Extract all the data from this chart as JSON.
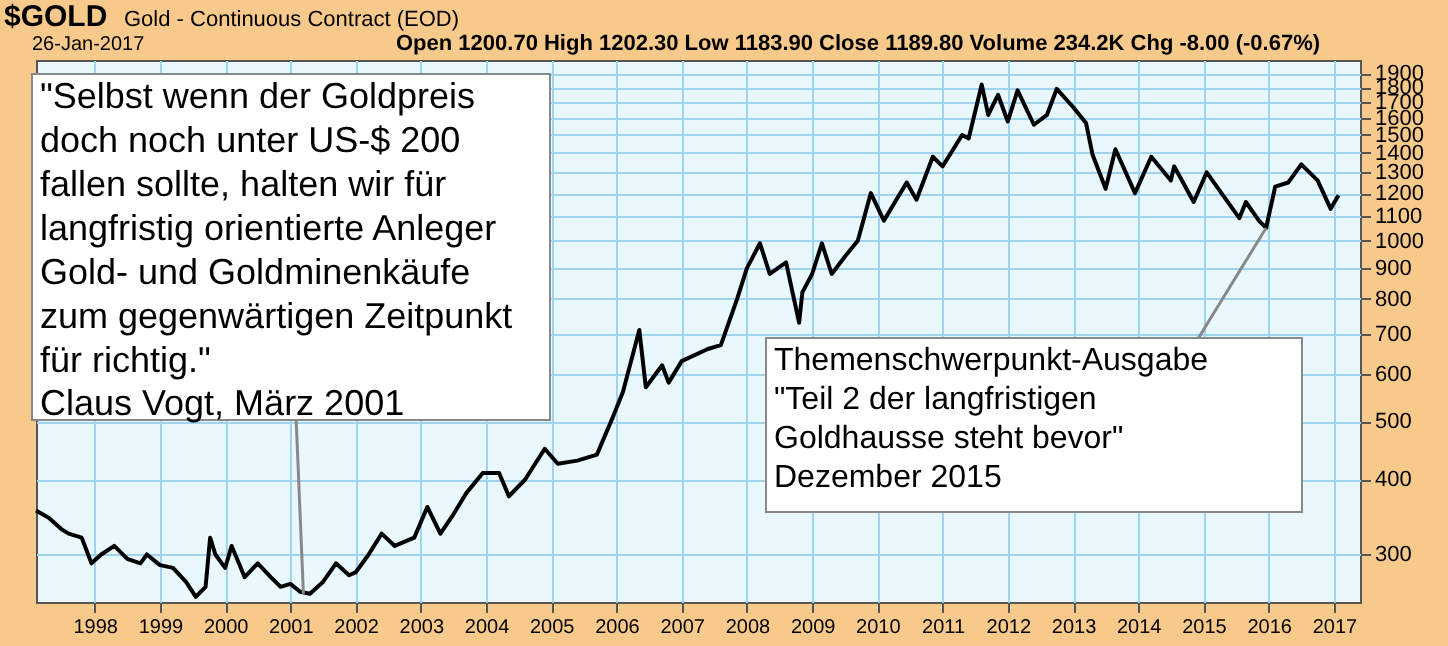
{
  "chart_data": {
    "type": "line",
    "title": "$GOLD",
    "subtitle": "Gold - Continuous Contract (EOD)",
    "annotations": [
      "26-Jan-2017",
      "Open 1200.70  High 1202.30  Low 1183.90  Close 1189.80  Volume 234.2K  Chg -8.00 (-0.67%)",
      {
        "text": "\"Selbst wenn der Goldpreis\ndoch noch unter US-$ 200\nfallen sollte, halten wir für\nlangfristig orientierte Anleger\nGold- und Goldminenkäufe\nzum gegenwärtigen Zeitpunkt\nfür richtig.\"\nClaus Vogt, März 2001",
        "x": 2001.2,
        "y": 258
      },
      {
        "text": "Themenschwerpunkt-Ausgabe\n\"Teil 2 der langfristigen\nGoldhausse steht bevor\"\nDezember 2015",
        "x": 2015.96,
        "y": 1050
      }
    ],
    "series": [
      {
        "color": "#000000",
        "x": [
          1997.1,
          1997.3,
          1997.5,
          1997.6,
          1997.8,
          1997.95,
          1998.1,
          1998.3,
          1998.5,
          1998.7,
          1998.8,
          1999.0,
          1999.2,
          1999.4,
          1999.55,
          1999.7,
          1999.77,
          1999.85,
          2000.0,
          2000.1,
          2000.3,
          2000.5,
          2000.7,
          2000.85,
          2001.0,
          2001.15,
          2001.3,
          2001.5,
          2001.7,
          2001.9,
          2002.0,
          2002.2,
          2002.4,
          2002.6,
          2002.9,
          2003.1,
          2003.3,
          2003.5,
          2003.7,
          2003.95,
          2004.2,
          2004.35,
          2004.6,
          2004.9,
          2005.1,
          2005.4,
          2005.7,
          2005.95,
          2006.1,
          2006.35,
          2006.45,
          2006.7,
          2006.8,
          2007.0,
          2007.4,
          2007.6,
          2007.85,
          2008.0,
          2008.2,
          2008.35,
          2008.6,
          2008.8,
          2008.85,
          2009.0,
          2009.15,
          2009.3,
          2009.5,
          2009.7,
          2009.9,
          2010.1,
          2010.45,
          2010.6,
          2010.85,
          2011.0,
          2011.3,
          2011.4,
          2011.6,
          2011.7,
          2011.85,
          2012.0,
          2012.15,
          2012.4,
          2012.6,
          2012.75,
          2013.0,
          2013.2,
          2013.3,
          2013.5,
          2013.65,
          2013.95,
          2014.2,
          2014.5,
          2014.55,
          2014.85,
          2015.05,
          2015.3,
          2015.55,
          2015.65,
          2015.85,
          2015.96,
          2016.1,
          2016.3,
          2016.5,
          2016.75,
          2016.95,
          2017.07
        ],
        "values": [
          355,
          345,
          330,
          325,
          320,
          290,
          300,
          310,
          295,
          290,
          300,
          288,
          285,
          270,
          255,
          265,
          320,
          300,
          285,
          310,
          275,
          290,
          275,
          265,
          268,
          260,
          258,
          270,
          290,
          277,
          280,
          300,
          325,
          310,
          320,
          360,
          325,
          350,
          380,
          410,
          410,
          375,
          400,
          450,
          425,
          430,
          440,
          510,
          560,
          710,
          570,
          620,
          580,
          630,
          660,
          670,
          800,
          900,
          990,
          880,
          920,
          730,
          820,
          880,
          990,
          880,
          940,
          1000,
          1200,
          1080,
          1250,
          1170,
          1380,
          1330,
          1500,
          1480,
          1820,
          1620,
          1750,
          1580,
          1780,
          1560,
          1620,
          1790,
          1670,
          1570,
          1390,
          1220,
          1420,
          1200,
          1380,
          1260,
          1330,
          1160,
          1300,
          1190,
          1090,
          1160,
          1080,
          1050,
          1230,
          1250,
          1340,
          1260,
          1130,
          1190
        ]
      }
    ],
    "xlim": [
      1997.1,
      2017.4
    ],
    "xticks": [
      1998,
      1999,
      2000,
      2001,
      2002,
      2003,
      2004,
      2005,
      2006,
      2007,
      2008,
      2009,
      2010,
      2011,
      2012,
      2013,
      2014,
      2015,
      2016,
      2017
    ],
    "ylim": [
      250,
      2000
    ],
    "yticks": [
      300,
      400,
      500,
      600,
      700,
      800,
      900,
      1000,
      1100,
      1200,
      1300,
      1400,
      1500,
      1600,
      1700,
      1800,
      1900
    ],
    "log": "y",
    "grid": true,
    "line_style": "solid"
  }
}
